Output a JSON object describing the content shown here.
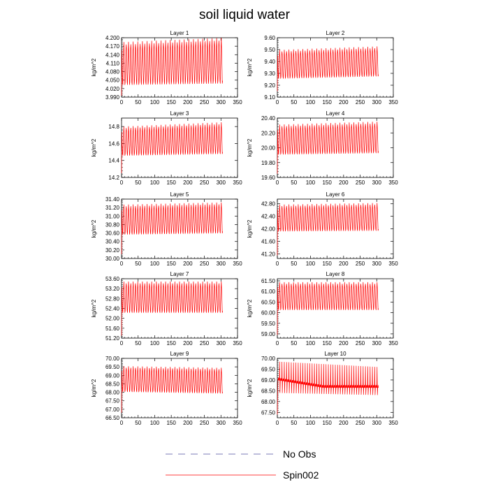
{
  "title": "soil liquid water",
  "colors": {
    "spin": "#ff0000",
    "noobs": "#5050a0"
  },
  "legend": [
    {
      "name": "No Obs",
      "style": "dashed",
      "color": "#5050a0"
    },
    {
      "name": "Spin002",
      "style": "solid",
      "color": "#ff0000"
    }
  ],
  "chart_data": [
    {
      "type": "line",
      "title": "Layer 1",
      "ylabel": "kg/m^2",
      "xlim": [
        0,
        350
      ],
      "ylim": [
        3.99,
        4.2
      ],
      "xticks": [
        "0",
        "50",
        "100",
        "150",
        "200",
        "250",
        "300",
        "350"
      ],
      "yticks": [
        "3.990",
        "4.020",
        "4.050",
        "4.080",
        "4.110",
        "4.140",
        "4.170",
        "4.200"
      ],
      "series": [
        {
          "x_end": 305,
          "period": 7,
          "early": {
            "lo": 4.03,
            "hi": 4.18
          },
          "late": {
            "lo": 4.035,
            "hi": 4.195
          },
          "init": 3.995
        }
      ]
    },
    {
      "type": "line",
      "title": "Layer 2",
      "ylabel": "kg/m^2",
      "xlim": [
        0,
        350
      ],
      "ylim": [
        9.1,
        9.6
      ],
      "xticks": [
        "0",
        "50",
        "100",
        "150",
        "200",
        "250",
        "300",
        "350"
      ],
      "yticks": [
        "9.10",
        "9.20",
        "9.30",
        "9.40",
        "9.50",
        "9.60"
      ],
      "series": [
        {
          "x_end": 305,
          "period": 7,
          "early": {
            "lo": 9.25,
            "hi": 9.49
          },
          "late": {
            "lo": 9.27,
            "hi": 9.52
          },
          "init": 9.15
        }
      ]
    },
    {
      "type": "line",
      "title": "Layer 3",
      "ylabel": "kg/m^2",
      "xlim": [
        0,
        350
      ],
      "ylim": [
        14.2,
        14.9
      ],
      "xticks": [
        "0",
        "50",
        "100",
        "150",
        "200",
        "250",
        "300",
        "350"
      ],
      "yticks": [
        "14.2",
        "14.4",
        "14.6",
        "14.8"
      ],
      "series": [
        {
          "x_end": 305,
          "period": 7,
          "early": {
            "lo": 14.45,
            "hi": 14.79
          },
          "late": {
            "lo": 14.47,
            "hi": 14.84
          },
          "init": 14.25
        }
      ]
    },
    {
      "type": "line",
      "title": "Layer 4",
      "ylabel": "kg/m^2",
      "xlim": [
        0,
        350
      ],
      "ylim": [
        19.6,
        20.4
      ],
      "xticks": [
        "0",
        "50",
        "100",
        "150",
        "200",
        "250",
        "300",
        "350"
      ],
      "yticks": [
        "19.60",
        "19.80",
        "20.00",
        "20.20",
        "20.40"
      ],
      "series": [
        {
          "x_end": 305,
          "period": 7,
          "early": {
            "lo": 19.9,
            "hi": 20.3
          },
          "late": {
            "lo": 19.92,
            "hi": 20.34
          },
          "init": 19.65
        }
      ]
    },
    {
      "type": "line",
      "title": "Layer 5",
      "ylabel": "kg/m^2",
      "xlim": [
        0,
        350
      ],
      "ylim": [
        30.0,
        31.4
      ],
      "xticks": [
        "0",
        "50",
        "100",
        "150",
        "200",
        "250",
        "300",
        "350"
      ],
      "yticks": [
        "30.00",
        "30.20",
        "30.40",
        "30.60",
        "30.80",
        "31.00",
        "31.20",
        "31.40"
      ],
      "series": [
        {
          "x_end": 305,
          "period": 7,
          "early": {
            "lo": 30.55,
            "hi": 31.25
          },
          "late": {
            "lo": 30.58,
            "hi": 31.3
          },
          "init": 30.1
        }
      ]
    },
    {
      "type": "line",
      "title": "Layer 6",
      "ylabel": "kg/m^2",
      "xlim": [
        0,
        350
      ],
      "ylim": [
        41.05,
        42.95
      ],
      "xticks": [
        "0",
        "50",
        "100",
        "150",
        "200",
        "250",
        "300",
        "350"
      ],
      "yticks": [
        "41.20",
        "41.60",
        "42.00",
        "42.40",
        "42.80"
      ],
      "series": [
        {
          "x_end": 305,
          "period": 7,
          "early": {
            "lo": 41.9,
            "hi": 42.75
          },
          "late": {
            "lo": 41.92,
            "hi": 42.8
          },
          "init": 41.15
        }
      ]
    },
    {
      "type": "line",
      "title": "Layer 7",
      "ylabel": "kg/m^2",
      "xlim": [
        0,
        350
      ],
      "ylim": [
        51.2,
        53.6
      ],
      "xticks": [
        "0",
        "50",
        "100",
        "150",
        "200",
        "250",
        "300",
        "350"
      ],
      "yticks": [
        "51.20",
        "51.60",
        "52.00",
        "52.40",
        "52.80",
        "53.20",
        "53.60"
      ],
      "series": [
        {
          "x_end": 305,
          "period": 7,
          "early": {
            "lo": 52.2,
            "hi": 53.45
          },
          "late": {
            "lo": 52.2,
            "hi": 53.45
          },
          "init": 51.3
        }
      ]
    },
    {
      "type": "line",
      "title": "Layer 8",
      "ylabel": "kg/m^2",
      "xlim": [
        0,
        350
      ],
      "ylim": [
        58.8,
        61.6
      ],
      "xticks": [
        "0",
        "50",
        "100",
        "150",
        "200",
        "250",
        "300",
        "350"
      ],
      "yticks": [
        "59.00",
        "59.50",
        "60.00",
        "60.50",
        "61.00",
        "61.50"
      ],
      "series": [
        {
          "x_end": 305,
          "period": 7,
          "early": {
            "lo": 60.1,
            "hi": 61.4
          },
          "late": {
            "lo": 60.1,
            "hi": 61.4
          },
          "init": 58.95
        }
      ]
    },
    {
      "type": "line",
      "title": "Layer 9",
      "ylabel": "kg/m^2",
      "xlim": [
        0,
        350
      ],
      "ylim": [
        66.5,
        70.0
      ],
      "xticks": [
        "0",
        "50",
        "100",
        "150",
        "200",
        "250",
        "300",
        "350"
      ],
      "yticks": [
        "66.50",
        "67.00",
        "67.50",
        "68.00",
        "68.50",
        "69.00",
        "69.50",
        "70.00"
      ],
      "series": [
        {
          "x_end": 305,
          "period": 7,
          "early": {
            "lo": 68.0,
            "hi": 69.5
          },
          "late": {
            "lo": 67.9,
            "hi": 69.4
          },
          "init": 66.8
        }
      ]
    },
    {
      "type": "line",
      "title": "Layer 10",
      "ylabel": "kg/m^2",
      "xlim": [
        0,
        350
      ],
      "ylim": [
        67.25,
        70.0
      ],
      "xticks": [
        "0",
        "50",
        "100",
        "150",
        "200",
        "250",
        "300",
        "350"
      ],
      "yticks": [
        "67.50",
        "68.00",
        "68.50",
        "69.00",
        "69.50",
        "70.00"
      ],
      "series": [
        {
          "x_end": 305,
          "period": 7,
          "early": {
            "lo": 68.4,
            "hi": 69.85
          },
          "late": {
            "lo": 68.3,
            "hi": 69.6
          },
          "mean_early": 69.05,
          "mean_late": 68.7,
          "init": 67.4
        }
      ]
    }
  ]
}
